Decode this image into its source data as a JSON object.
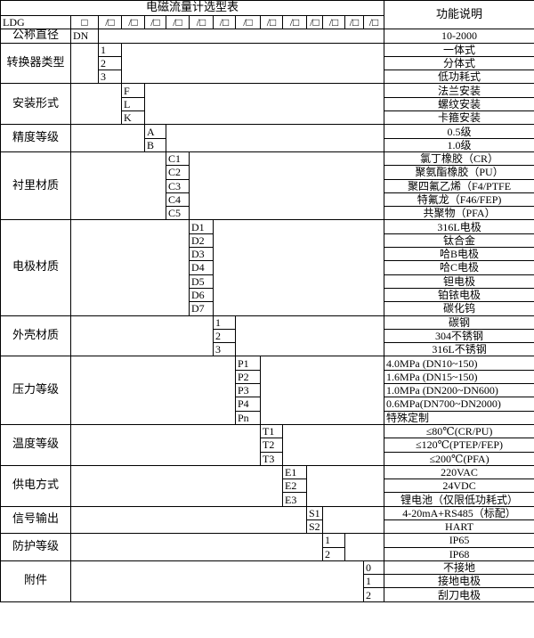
{
  "table": {
    "title": "电磁流量计选型表",
    "desc_header": "功能说明",
    "header_row": {
      "model": "LDG",
      "first": "□",
      "slots": [
        "/□",
        "/□",
        "/□",
        "/□",
        "/□",
        "/□",
        "/□",
        "/□",
        "/□",
        "/□",
        "/□",
        "/□",
        "/□"
      ]
    },
    "nominal_row": {
      "label": "公称直径",
      "code": "DN",
      "desc": "10-2000"
    },
    "groups": [
      {
        "label": "转换器类型",
        "items": [
          {
            "code": "1",
            "desc": "一体式"
          },
          {
            "code": "2",
            "desc": "分体式"
          },
          {
            "code": "3",
            "desc": "低功耗式"
          }
        ]
      },
      {
        "label": "安装形式",
        "items": [
          {
            "code": "F",
            "desc": "法兰安装"
          },
          {
            "code": "L",
            "desc": "螺纹安装"
          },
          {
            "code": "K",
            "desc": "卡箍安装"
          }
        ]
      },
      {
        "label": "精度等级",
        "items": [
          {
            "code": "A",
            "desc": "0.5级"
          },
          {
            "code": "B",
            "desc": "1.0级"
          }
        ]
      },
      {
        "label": "衬里材质",
        "items": [
          {
            "code": "C1",
            "desc": "氯丁橡胶（CR）"
          },
          {
            "code": "C2",
            "desc": "聚氨酯橡胶（PU）"
          },
          {
            "code": "C3",
            "desc": "聚四氟乙烯（F4/PTFE"
          },
          {
            "code": "C4",
            "desc": "特氟龙（F46/FEP)"
          },
          {
            "code": "C5",
            "desc": "共聚物（PFA）"
          }
        ]
      },
      {
        "label": "电极材质",
        "items": [
          {
            "code": "D1",
            "desc": "316L电极"
          },
          {
            "code": "D2",
            "desc": "钛合金"
          },
          {
            "code": "D3",
            "desc": "哈B电极"
          },
          {
            "code": "D4",
            "desc": "哈C电极"
          },
          {
            "code": "D5",
            "desc": "钽电极"
          },
          {
            "code": "D6",
            "desc": "铂铱电极"
          },
          {
            "code": "D7",
            "desc": "碳化钨"
          }
        ]
      },
      {
        "label": "外壳材质",
        "items": [
          {
            "code": "1",
            "desc": "碳钢"
          },
          {
            "code": "2",
            "desc": "304不锈钢"
          },
          {
            "code": "3",
            "desc": "316L不锈钢"
          }
        ]
      },
      {
        "label": "压力等级",
        "items": [
          {
            "code": "P1",
            "desc": "4.0MPa (DN10~150)"
          },
          {
            "code": "P2",
            "desc": "1.6MPa (DN15~150)"
          },
          {
            "code": "P3",
            "desc": "1.0MPa (DN200~DN600)"
          },
          {
            "code": "P4",
            "desc": "0.6MPa(DN700~DN2000)"
          },
          {
            "code": "Pn",
            "desc": "特殊定制"
          }
        ]
      },
      {
        "label": "温度等级",
        "items": [
          {
            "code": "T1",
            "desc": "≤80℃(CR/PU)"
          },
          {
            "code": "T2",
            "desc": "≤120℃(PTEP/FEP)"
          },
          {
            "code": "T3",
            "desc": "≤200℃(PFA)"
          }
        ]
      },
      {
        "label": "供电方式",
        "items": [
          {
            "code": "E1",
            "desc": "220VAC"
          },
          {
            "code": "E2",
            "desc": "24VDC"
          },
          {
            "code": "E3",
            "desc": "锂电池（仅限低功耗式）"
          }
        ]
      },
      {
        "label": "信号输出",
        "items": [
          {
            "code": "S1",
            "desc": "4-20mA+RS485（标配）"
          },
          {
            "code": "S2",
            "desc": "HART"
          }
        ]
      },
      {
        "label": "防护等级",
        "items": [
          {
            "code": "1",
            "desc": "IP65"
          },
          {
            "code": "2",
            "desc": "IP68"
          }
        ]
      },
      {
        "label": "附件",
        "items": [
          {
            "code": "0",
            "desc": "不接地"
          },
          {
            "code": "1",
            "desc": "接地电极"
          },
          {
            "code": "2",
            "desc": "刮刀电极"
          }
        ]
      }
    ]
  }
}
